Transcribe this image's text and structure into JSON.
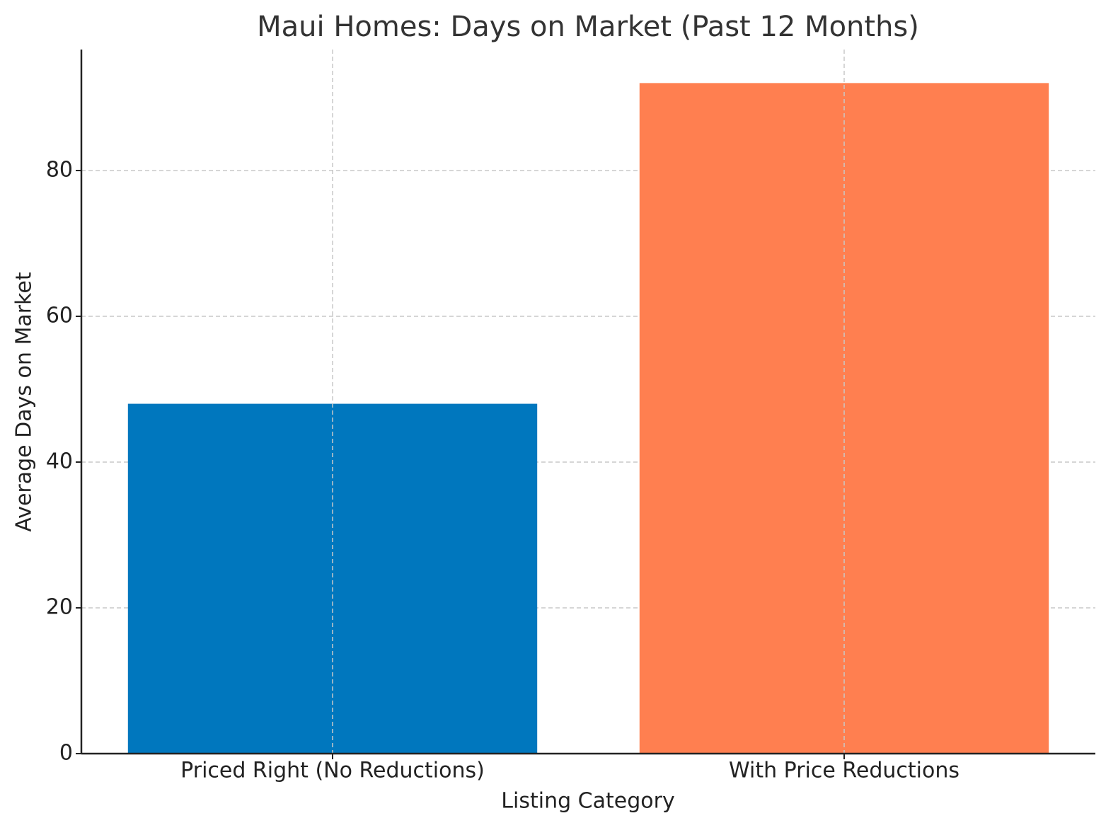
{
  "chart_data": {
    "type": "bar",
    "title": "Maui Homes: Days on Market (Past 12 Months)",
    "x_label": "Listing Category",
    "y_label": "Average Days on Market",
    "categories": [
      "Priced Right (No Reductions)",
      "With Price Reductions"
    ],
    "values": [
      48,
      92
    ],
    "colors": [
      "#0077be",
      "#ff7f50"
    ],
    "ylim": [
      0,
      96.6
    ],
    "yticks": [
      0,
      20,
      40,
      60,
      80
    ],
    "grid": true
  }
}
